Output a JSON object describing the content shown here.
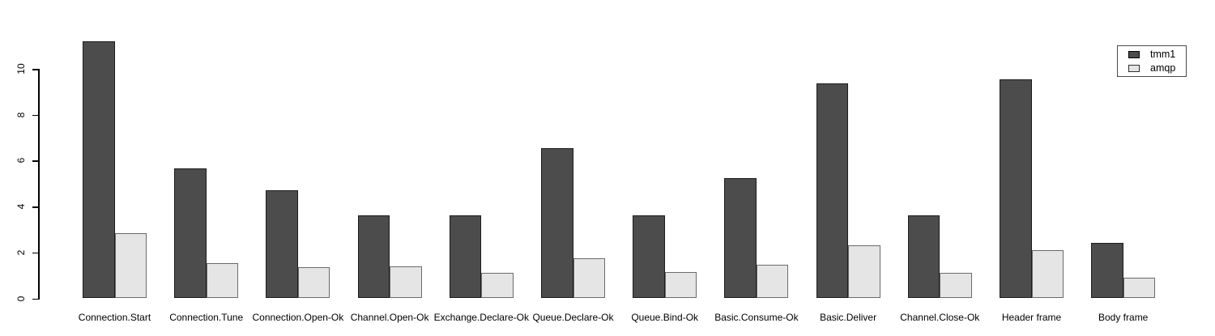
{
  "chart_data": {
    "type": "bar",
    "title": "",
    "xlabel": "",
    "ylabel": "",
    "categories": [
      "Connection.Start",
      "Connection.Tune",
      "Connection.Open-Ok",
      "Channel.Open-Ok",
      "Exchange.Declare-Ok",
      "Queue.Declare-Ok",
      "Queue.Bind-Ok",
      "Basic.Consume-Ok",
      "Basic.Deliver",
      "Channel.Close-Ok",
      "Header frame",
      "Body frame"
    ],
    "series": [
      {
        "name": "tmm1",
        "fill_color": "#4c4c4c",
        "border_color": "#1c1c1c",
        "values": [
          11.2,
          5.65,
          4.7,
          3.6,
          3.6,
          6.55,
          3.6,
          5.25,
          9.35,
          3.6,
          9.55,
          2.4
        ]
      },
      {
        "name": "amqp",
        "fill_color": "#e5e5e5",
        "border_color": "#6b6b6b",
        "values": [
          2.85,
          1.55,
          1.35,
          1.4,
          1.1,
          1.75,
          1.15,
          1.45,
          2.3,
          1.1,
          2.1,
          0.9
        ]
      }
    ],
    "yticks": [
      0,
      2,
      4,
      6,
      8,
      10
    ],
    "ylim": [
      0,
      11.3
    ],
    "grid": false,
    "legend_position": "top-right",
    "axis_color": "#000000",
    "background_color": "#ffffff"
  }
}
